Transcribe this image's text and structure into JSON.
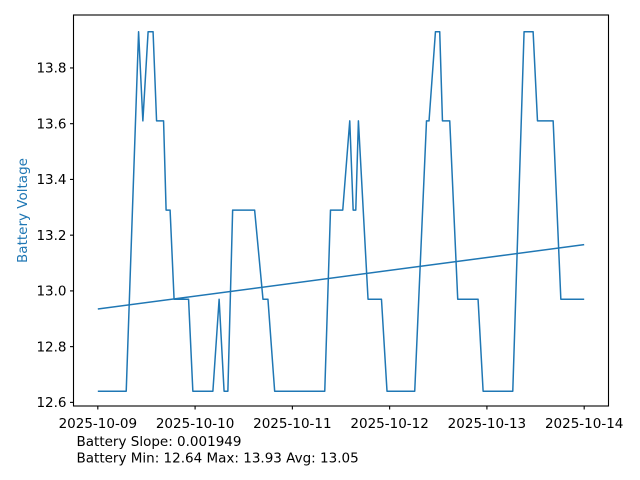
{
  "figure": {
    "background": "#ffffff",
    "spine_color": "#000000",
    "tick_label_color": "#000000",
    "y_axis_label": "Battery Voltage",
    "y_axis_label_color": "#1f77b4",
    "annotations": {
      "line1": "Battery Slope: 0.001949",
      "line2": "Battery Min: 12.64 Max: 13.93 Avg: 13.05"
    },
    "stats": {
      "slope": "0.001949",
      "min": "12.64",
      "max": "13.93",
      "avg": "13.05"
    }
  },
  "chart_data": {
    "type": "line",
    "title": "",
    "xlabel": "",
    "ylabel": "Battery Voltage",
    "x_unit": "days since 2025-10-09 00:00",
    "xlim": [
      -0.25,
      5.25
    ],
    "ylim": [
      12.587,
      13.99
    ],
    "grid": false,
    "legend_position": "none",
    "x_ticks": [
      0,
      1,
      2,
      3,
      4,
      5
    ],
    "x_tick_labels": [
      "2025-10-09",
      "2025-10-10",
      "2025-10-11",
      "2025-10-12",
      "2025-10-13",
      "2025-10-14"
    ],
    "y_ticks": [
      12.6,
      12.8,
      13.0,
      13.2,
      13.4,
      13.6,
      13.8
    ],
    "y_tick_labels": [
      "12.6",
      "12.8",
      "13.0",
      "13.2",
      "13.4",
      "13.6",
      "13.8"
    ],
    "series": [
      {
        "name": "battery-voltage-line",
        "color": "#1f77b4",
        "width": 1.5,
        "x": [
          0.0,
          0.292,
          0.419,
          0.463,
          0.517,
          0.568,
          0.604,
          0.676,
          0.702,
          0.743,
          0.784,
          0.933,
          0.977,
          1.183,
          1.247,
          1.298,
          1.337,
          1.386,
          1.612,
          1.698,
          1.749,
          1.818,
          2.333,
          2.392,
          2.518,
          2.59,
          2.625,
          2.652,
          2.679,
          2.778,
          2.916,
          2.973,
          3.258,
          3.379,
          3.405,
          3.471,
          3.515,
          3.543,
          3.618,
          3.7,
          3.909,
          3.961,
          4.266,
          4.382,
          4.475,
          4.52,
          4.681,
          4.76,
          5.0
        ],
        "y": [
          12.64,
          12.64,
          13.93,
          13.61,
          13.93,
          13.93,
          13.61,
          13.61,
          13.29,
          13.29,
          12.97,
          12.97,
          12.64,
          12.64,
          12.97,
          12.64,
          12.64,
          13.29,
          13.29,
          12.97,
          12.97,
          12.64,
          12.64,
          13.29,
          13.29,
          13.61,
          13.29,
          13.29,
          13.61,
          12.97,
          12.97,
          12.64,
          12.64,
          13.61,
          13.61,
          13.93,
          13.93,
          13.61,
          13.61,
          12.97,
          12.97,
          12.64,
          12.64,
          13.93,
          13.93,
          13.61,
          13.61,
          12.97,
          12.97
        ]
      },
      {
        "name": "battery-trend-line",
        "color": "#1f77b4",
        "width": 1.5,
        "x": [
          0.0,
          5.0
        ],
        "y": [
          12.935,
          13.166
        ]
      }
    ],
    "annotations": [
      "Battery Slope: 0.001949",
      "Battery Min: 12.64 Max: 13.93 Avg: 13.05"
    ]
  }
}
